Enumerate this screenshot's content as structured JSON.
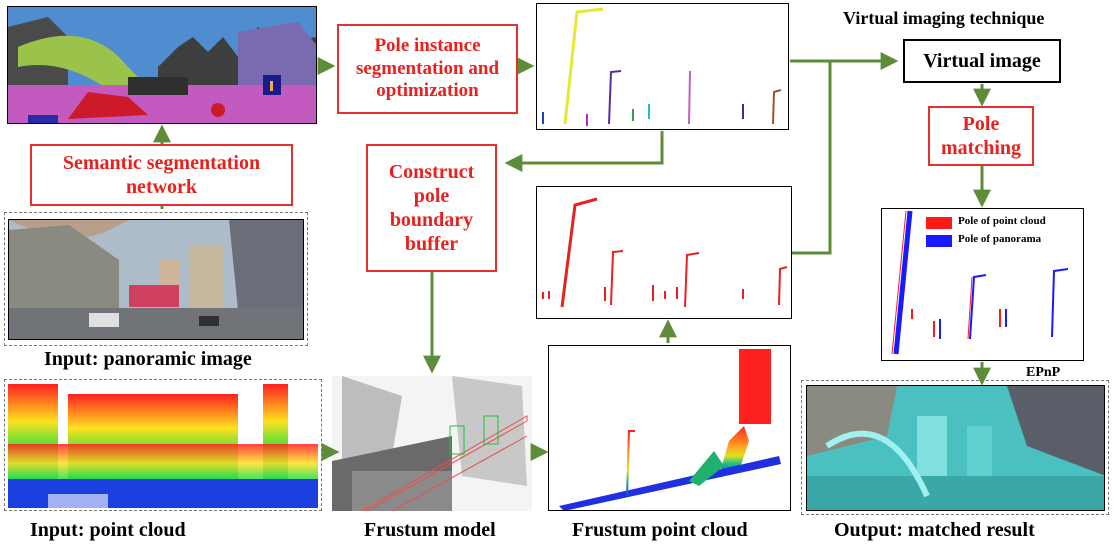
{
  "labels": {
    "semantic_net": "Semantic segmentation network",
    "pole_instance": "Pole instance segmentation and optimization",
    "construct_buffer": "Construct pole boundary buffer",
    "virtual_technique": "Virtual imaging technique",
    "virtual_image": "Virtual image",
    "pole_matching": "Pole matching",
    "epnp": "EPnP"
  },
  "captions": {
    "panoramic": "Input: panoramic image",
    "point_cloud": "Input: point cloud",
    "frustum_model": "Frustum model",
    "frustum_cloud": "Frustum point cloud",
    "output": "Output: matched result"
  },
  "legend": {
    "pc_label": "Pole of point cloud",
    "pano_label": "Pole of panorama",
    "pc_color": "#ff1a1a",
    "pano_color": "#1a1aff"
  },
  "colors": {
    "arrow": "#5e8d3a",
    "box_red": "#e53030"
  }
}
